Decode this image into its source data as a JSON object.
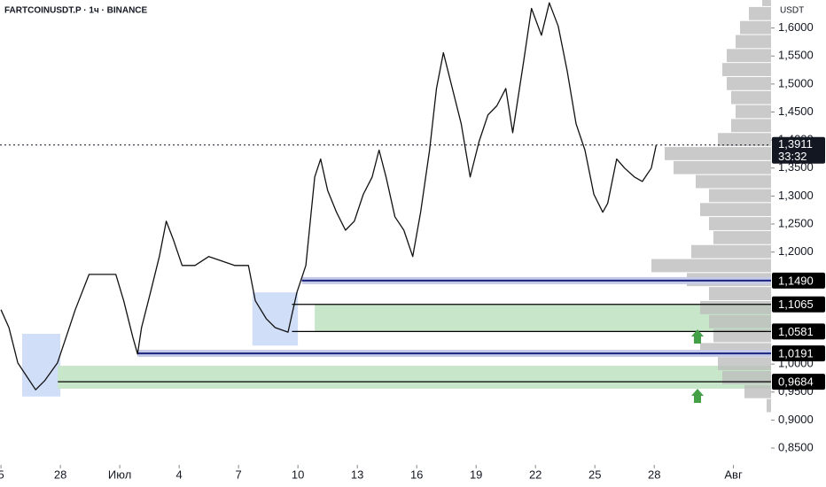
{
  "chart_data": {
    "type": "line",
    "title": "FARTCOINUSDT.P · 1ч · BINANCE",
    "y_axis_label": "USDT",
    "color": "#111111",
    "x": [
      0.0,
      0.4,
      0.85,
      1.3,
      1.75,
      2.2,
      2.85,
      3.3,
      3.75,
      4.45,
      5.1,
      5.8,
      6.2,
      6.65,
      6.9,
      7.1,
      7.55,
      8.0,
      8.35,
      8.7,
      9.15,
      9.8,
      10.5,
      11.15,
      11.8,
      12.5,
      12.85,
      13.4,
      13.85,
      14.5,
      14.95,
      15.4,
      15.85,
      16.15,
      16.5,
      16.95,
      17.4,
      17.85,
      18.3,
      18.75,
      19.1,
      19.45,
      19.9,
      20.35,
      20.8,
      21.2,
      21.65,
      22.0,
      22.35,
      22.8,
      23.25,
      23.7,
      24.15,
      24.6,
      25.05,
      25.5,
      25.85,
      26.4,
      26.8,
      27.3,
      27.7,
      28.15,
      28.6,
      29.05,
      29.5,
      29.95,
      30.4,
      30.65,
      31.1,
      31.5,
      32.0,
      32.4,
      32.85,
      33.1
    ],
    "values": [
      1.097,
      1.065,
      1.002,
      0.978,
      0.954,
      0.97,
      1.002,
      1.049,
      1.097,
      1.16,
      1.16,
      1.16,
      1.113,
      1.049,
      1.018,
      1.065,
      1.128,
      1.192,
      1.255,
      1.223,
      1.176,
      1.176,
      1.192,
      1.184,
      1.176,
      1.176,
      1.113,
      1.081,
      1.065,
      1.057,
      1.128,
      1.176,
      1.334,
      1.366,
      1.31,
      1.271,
      1.239,
      1.255,
      1.303,
      1.334,
      1.382,
      1.334,
      1.263,
      1.239,
      1.192,
      1.271,
      1.382,
      1.492,
      1.556,
      1.492,
      1.429,
      1.334,
      1.397,
      1.445,
      1.461,
      1.492,
      1.413,
      1.54,
      1.635,
      1.587,
      1.645,
      1.603,
      1.524,
      1.429,
      1.382,
      1.303,
      1.271,
      1.287,
      1.366,
      1.35,
      1.334,
      1.326,
      1.35,
      1.3911
    ],
    "xlim": [
      -0.05,
      38.9
    ],
    "ylim": [
      0.82,
      1.65
    ],
    "xticks": [
      {
        "value": 0,
        "label": "5"
      },
      {
        "value": 3,
        "label": "28"
      },
      {
        "value": 6,
        "label": "Июл"
      },
      {
        "value": 9,
        "label": "4"
      },
      {
        "value": 12,
        "label": "7"
      },
      {
        "value": 15,
        "label": "10"
      },
      {
        "value": 18,
        "label": "13"
      },
      {
        "value": 21,
        "label": "16"
      },
      {
        "value": 24,
        "label": "19"
      },
      {
        "value": 27,
        "label": "22"
      },
      {
        "value": 30,
        "label": "25"
      },
      {
        "value": 33,
        "label": "28"
      },
      {
        "value": 37,
        "label": "Авг"
      }
    ],
    "yticks": [
      {
        "value": 1.6,
        "label": "1,6000"
      },
      {
        "value": 1.55,
        "label": "1,5500"
      },
      {
        "value": 1.5,
        "label": "1,5000"
      },
      {
        "value": 1.45,
        "label": "1,4500"
      },
      {
        "value": 1.4,
        "label": "1,4000"
      },
      {
        "value": 1.35,
        "label": "1,3500"
      },
      {
        "value": 1.3,
        "label": "1,3000"
      },
      {
        "value": 1.25,
        "label": "1,2500"
      },
      {
        "value": 1.2,
        "label": "1,2000"
      },
      {
        "value": 1.0,
        "label": "1,0000"
      },
      {
        "value": 0.95,
        "label": "0,9500"
      },
      {
        "value": 0.9,
        "label": "0,9000"
      },
      {
        "value": 0.85,
        "label": "0,8500"
      }
    ],
    "current_price": {
      "value": 1.3911,
      "label": "1,3911",
      "countdown": "33:32"
    },
    "levels": [
      {
        "value": 1.149,
        "label": "1,1490",
        "x_start": 15.2,
        "style": "blue"
      },
      {
        "value": 1.1065,
        "label": "1,1065",
        "x_start": 14.7,
        "style": "black"
      },
      {
        "value": 1.0581,
        "label": "1,0581",
        "x_start": 14.7,
        "style": "black"
      },
      {
        "value": 1.0191,
        "label": "1,0191",
        "x_start": 6.9,
        "style": "blue"
      },
      {
        "value": 0.9684,
        "label": "0,9684",
        "x_start": 2.87,
        "style": "black"
      }
    ],
    "zones": [
      {
        "ylim": [
          1.0581,
          1.1065
        ],
        "x_start": 15.85,
        "color": "#c8e6c9"
      },
      {
        "ylim": [
          0.956,
          0.997
        ],
        "x_start": 2.87,
        "color": "#c8e6c9"
      }
    ],
    "highlight_boxes": [
      {
        "xlim": [
          1.07,
          3.0
        ],
        "ylim": [
          0.942,
          1.054
        ],
        "color": "#c9d8f7"
      },
      {
        "xlim": [
          12.7,
          15.0
        ],
        "ylim": [
          1.033,
          1.128
        ],
        "color": "#c9d8f7"
      }
    ],
    "volume_profile": {
      "color": "#bdbdbd",
      "prices": [
        1.65,
        1.625,
        1.6,
        1.575,
        1.55,
        1.525,
        1.5,
        1.475,
        1.45,
        1.425,
        1.4,
        1.375,
        1.35,
        1.325,
        1.3,
        1.275,
        1.25,
        1.225,
        1.2,
        1.175,
        1.15,
        1.125,
        1.1,
        1.075,
        1.05,
        1.025,
        1.0,
        0.975,
        0.95,
        0.925
      ],
      "values": [
        10,
        25,
        35,
        40,
        50,
        55,
        50,
        45,
        40,
        45,
        60,
        120,
        110,
        85,
        70,
        80,
        70,
        65,
        90,
        135,
        95,
        70,
        80,
        70,
        65,
        80,
        60,
        55,
        30,
        5
      ]
    }
  }
}
